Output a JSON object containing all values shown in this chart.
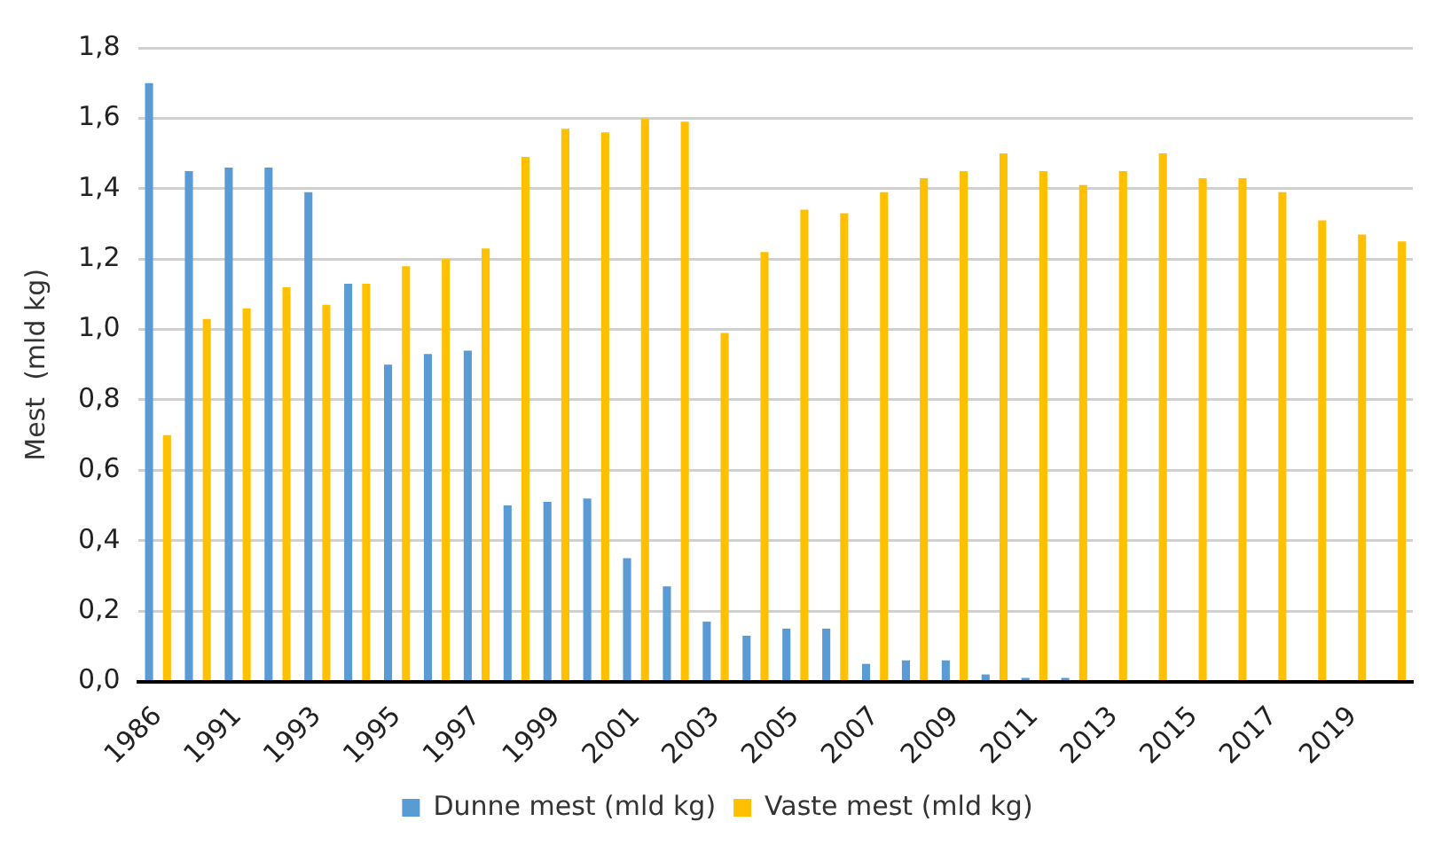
{
  "chart_data": {
    "type": "bar",
    "ylabel": "Mest  (mld kg)",
    "categories": [
      "1986",
      null,
      "1991",
      null,
      "1993",
      null,
      "1995",
      null,
      "1997",
      null,
      "1999",
      null,
      "2001",
      null,
      "2003",
      null,
      "2005",
      null,
      "2007",
      null,
      "2009",
      null,
      "2011",
      null,
      "2013",
      null,
      "2015",
      null,
      "2017",
      null,
      "2019",
      null
    ],
    "series": [
      {
        "name": "Dunne mest (mld kg)",
        "color": "#5b9bd5",
        "values": [
          1.7,
          1.45,
          1.46,
          1.46,
          1.39,
          1.13,
          0.9,
          0.93,
          0.94,
          0.5,
          0.51,
          0.52,
          0.35,
          0.27,
          0.17,
          0.13,
          0.15,
          0.15,
          0.05,
          0.06,
          0.06,
          0.02,
          0.01,
          0.01,
          0,
          0,
          0,
          0,
          0,
          0,
          0,
          0
        ]
      },
      {
        "name": "Vaste mest (mld kg)",
        "color": "#ffc000",
        "values": [
          0.7,
          1.03,
          1.06,
          1.12,
          1.07,
          1.13,
          1.18,
          1.2,
          1.23,
          1.49,
          1.57,
          1.56,
          1.6,
          1.59,
          0.99,
          1.22,
          1.34,
          1.33,
          1.39,
          1.43,
          1.45,
          1.5,
          1.45,
          1.41,
          1.45,
          1.5,
          1.43,
          1.43,
          1.39,
          1.31,
          1.27,
          1.25
        ]
      }
    ],
    "ylim": [
      0,
      1.8
    ],
    "yticks": [
      {
        "value": 0,
        "label": "0,0"
      },
      {
        "value": 0.2,
        "label": "0,2"
      },
      {
        "value": 0.4,
        "label": "0,4"
      },
      {
        "value": 0.6,
        "label": "0,6"
      },
      {
        "value": 0.8,
        "label": "0,8"
      },
      {
        "value": 1,
        "label": "1,0"
      },
      {
        "value": 1.2,
        "label": "1,2"
      },
      {
        "value": 1.4,
        "label": "1,4"
      },
      {
        "value": 1.6,
        "label": "1,6"
      },
      {
        "value": 1.8,
        "label": "1,8"
      }
    ],
    "grid": "y",
    "legend": "bottom"
  }
}
